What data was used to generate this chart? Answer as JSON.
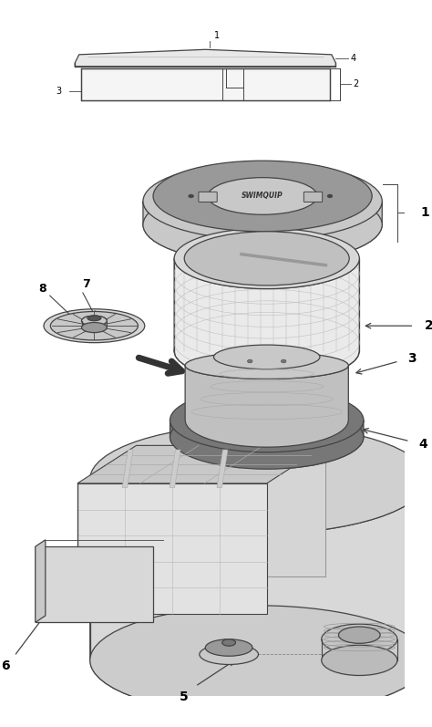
{
  "background_color": "#ffffff",
  "line_color": "#444444",
  "figsize": [
    4.74,
    7.97
  ],
  "dpi": 100,
  "gray_light": "#e8e8e8",
  "gray_mid": "#c8c8c8",
  "gray_dark": "#999999",
  "gray_darker": "#777777",
  "gray_darkest": "#555555"
}
